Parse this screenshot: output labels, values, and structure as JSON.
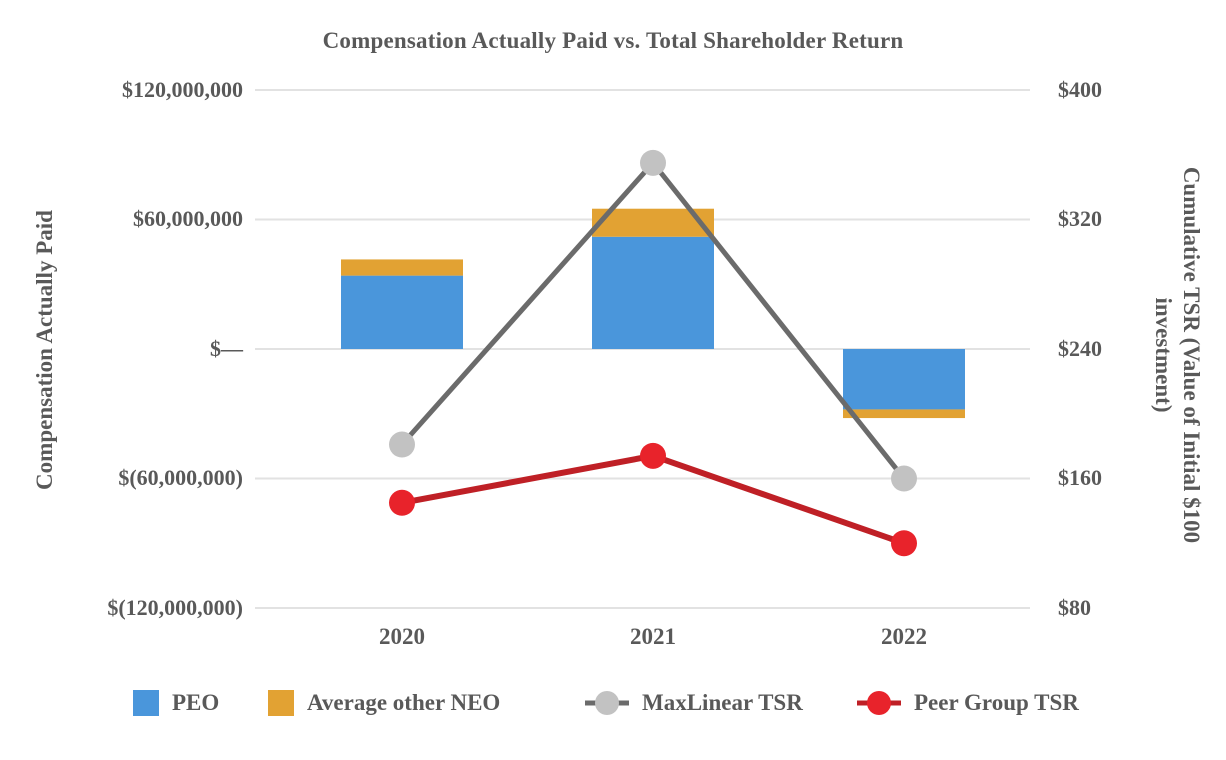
{
  "title": "Compensation Actually Paid vs. Total Shareholder Return",
  "chart_data": {
    "type": "bar",
    "subtype": "stacked-bars-with-lines",
    "categories": [
      "2020",
      "2021",
      "2022"
    ],
    "bar_series": [
      {
        "name": "PEO",
        "color": "#4A96DB",
        "values": [
          34000000,
          52000000,
          -28000000
        ]
      },
      {
        "name": "Average other NEO",
        "color": "#E2A233",
        "values": [
          7500000,
          13000000,
          -4000000
        ]
      }
    ],
    "line_series": [
      {
        "name": "MaxLinear TSR",
        "line_color": "#6B6B6B",
        "marker_color": "#C2C2C2",
        "values": [
          181,
          355,
          160
        ]
      },
      {
        "name": "Peer Group TSR",
        "line_color": "#BF2026",
        "marker_color": "#E8232B",
        "values": [
          145,
          174,
          120
        ]
      }
    ],
    "left_axis": {
      "label": "Compensation Actually Paid",
      "tick_labels": [
        "$120,000,000",
        "$60,000,000",
        "$—",
        "$(60,000,000)",
        "$(120,000,000)"
      ],
      "ticks": [
        120000000,
        60000000,
        0,
        -60000000,
        -120000000
      ],
      "range": [
        -120000000,
        120000000
      ]
    },
    "right_axis": {
      "label": "Cumulative TSR (Value of Initial $100 investment)",
      "label_line1": "Cumulative TSR (Value of Initial $100",
      "label_line2": "investment)",
      "tick_labels": [
        "$400",
        "$320",
        "$240",
        "$160",
        "$80"
      ],
      "ticks": [
        400,
        320,
        240,
        160,
        80
      ],
      "range": [
        80,
        400
      ]
    },
    "x_axis": {
      "labels": [
        "2020",
        "2021",
        "2022"
      ]
    },
    "grid": true,
    "legend_position": "bottom",
    "stacked": true
  },
  "legend": {
    "items": [
      {
        "label": "PEO",
        "swatch": "square",
        "color": "#4A96DB"
      },
      {
        "label": "Average other NEO",
        "swatch": "square",
        "color": "#E2A233"
      },
      {
        "label": "MaxLinear TSR",
        "swatch": "line-marker",
        "line_color": "#6B6B6B",
        "marker_color": "#C2C2C2"
      },
      {
        "label": "Peer Group TSR",
        "swatch": "line-marker",
        "line_color": "#BF2026",
        "marker_color": "#E8232B"
      }
    ]
  },
  "colors": {
    "text": "#595959",
    "gridline": "#E2E2E2",
    "background": "#FFFFFF"
  }
}
